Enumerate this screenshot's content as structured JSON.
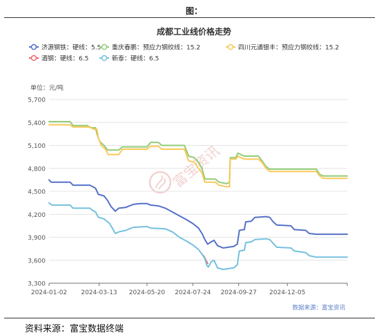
{
  "figure_label": "图：",
  "footer_source": "资料来源：富宝数据终端",
  "chart_data": {
    "type": "line",
    "title": "成都工业线价格走势",
    "unit_label": "单位：元/吨",
    "data_source": "数据来源：富宝资讯",
    "watermark": "富宝资讯",
    "xlabel": "",
    "ylabel": "",
    "ylim": [
      3300,
      5700
    ],
    "yticks": [
      3300,
      3600,
      3900,
      4200,
      4500,
      4800,
      5100,
      5400,
      5700
    ],
    "ytick_labels": [
      "3,300",
      "3,600",
      "3,900",
      "4,200",
      "4,500",
      "4,800",
      "5,100",
      "5,400",
      "5,700"
    ],
    "xlim": [
      "2024-01-02",
      "2025-02-28"
    ],
    "xticks": [
      "2024-01-02",
      "2024-03-13",
      "2024-05-20",
      "2024-07-24",
      "2024-09-27",
      "2024-12-05"
    ],
    "grid": "horizontal",
    "legend_position": "top-left",
    "series": [
      {
        "name": "济源钢铁：硬线：5.5",
        "color": "#5470c6",
        "points": [
          [
            "2024-01-02",
            4650
          ],
          [
            "2024-01-05",
            4620
          ],
          [
            "2024-02-01",
            4620
          ],
          [
            "2024-02-05",
            4580
          ],
          [
            "2024-02-29",
            4580
          ],
          [
            "2024-03-04",
            4560
          ],
          [
            "2024-03-08",
            4540
          ],
          [
            "2024-03-12",
            4460
          ],
          [
            "2024-03-20",
            4440
          ],
          [
            "2024-03-25",
            4380
          ],
          [
            "2024-03-30",
            4300
          ],
          [
            "2024-04-03",
            4260
          ],
          [
            "2024-04-05",
            4240
          ],
          [
            "2024-04-10",
            4280
          ],
          [
            "2024-04-20",
            4290
          ],
          [
            "2024-04-25",
            4310
          ],
          [
            "2024-05-01",
            4330
          ],
          [
            "2024-05-10",
            4340
          ],
          [
            "2024-05-20",
            4340
          ],
          [
            "2024-05-25",
            4320
          ],
          [
            "2024-06-05",
            4310
          ],
          [
            "2024-06-15",
            4280
          ],
          [
            "2024-06-25",
            4230
          ],
          [
            "2024-07-05",
            4180
          ],
          [
            "2024-07-15",
            4130
          ],
          [
            "2024-07-24",
            4080
          ],
          [
            "2024-08-01",
            4020
          ],
          [
            "2024-08-06",
            3950
          ],
          [
            "2024-08-10",
            3870
          ],
          [
            "2024-08-14",
            3810
          ],
          [
            "2024-08-19",
            3840
          ],
          [
            "2024-08-23",
            3860
          ],
          [
            "2024-08-28",
            3790
          ],
          [
            "2024-09-05",
            3760
          ],
          [
            "2024-09-20",
            3780
          ],
          [
            "2024-09-25",
            3810
          ],
          [
            "2024-09-28",
            3990
          ],
          [
            "2024-10-05",
            4000
          ],
          [
            "2024-10-07",
            4100
          ],
          [
            "2024-10-15",
            4110
          ],
          [
            "2024-10-20",
            4160
          ],
          [
            "2024-11-05",
            4170
          ],
          [
            "2024-11-10",
            4160
          ],
          [
            "2024-11-15",
            4100
          ],
          [
            "2024-11-20",
            4060
          ],
          [
            "2024-12-10",
            4050
          ],
          [
            "2024-12-15",
            4000
          ],
          [
            "2024-12-31",
            3990
          ],
          [
            "2025-01-05",
            3950
          ],
          [
            "2025-01-15",
            3940
          ],
          [
            "2025-02-28",
            3940
          ]
        ]
      },
      {
        "name": "重庆春鹏：预应力钢绞线：15.2",
        "color": "#91cc75",
        "points": [
          [
            "2024-01-02",
            5410
          ],
          [
            "2024-02-01",
            5410
          ],
          [
            "2024-02-05",
            5360
          ],
          [
            "2024-02-25",
            5360
          ],
          [
            "2024-03-01",
            5330
          ],
          [
            "2024-03-08",
            5330
          ],
          [
            "2024-03-10",
            5250
          ],
          [
            "2024-03-14",
            5150
          ],
          [
            "2024-03-20",
            5100
          ],
          [
            "2024-03-25",
            5040
          ],
          [
            "2024-04-10",
            5040
          ],
          [
            "2024-04-15",
            5080
          ],
          [
            "2024-05-05",
            5080
          ],
          [
            "2024-05-20",
            5080
          ],
          [
            "2024-05-25",
            5140
          ],
          [
            "2024-06-05",
            5140
          ],
          [
            "2024-06-10",
            5100
          ],
          [
            "2024-07-12",
            5100
          ],
          [
            "2024-07-18",
            4960
          ],
          [
            "2024-07-26",
            4940
          ],
          [
            "2024-08-01",
            4880
          ],
          [
            "2024-08-06",
            4800
          ],
          [
            "2024-08-10",
            4660
          ],
          [
            "2024-08-15",
            4660
          ],
          [
            "2024-08-25",
            4660
          ],
          [
            "2024-08-30",
            4620
          ],
          [
            "2024-09-10",
            4600
          ],
          [
            "2024-09-14",
            4620
          ],
          [
            "2024-09-15",
            4940
          ],
          [
            "2024-09-23",
            4940
          ],
          [
            "2024-09-26",
            5000
          ],
          [
            "2024-09-30",
            4980
          ],
          [
            "2024-10-05",
            4960
          ],
          [
            "2024-10-25",
            4960
          ],
          [
            "2024-10-30",
            4900
          ],
          [
            "2024-11-05",
            4820
          ],
          [
            "2024-11-10",
            4790
          ],
          [
            "2024-12-15",
            4790
          ],
          [
            "2025-01-15",
            4790
          ],
          [
            "2025-01-20",
            4720
          ],
          [
            "2025-01-25",
            4700
          ],
          [
            "2025-02-28",
            4700
          ]
        ]
      },
      {
        "name": "四川元通银丰：预应力钢绞线：15.2",
        "color": "#fac858",
        "points": [
          [
            "2024-01-02",
            5370
          ],
          [
            "2024-02-01",
            5370
          ],
          [
            "2024-02-05",
            5340
          ],
          [
            "2024-03-01",
            5340
          ],
          [
            "2024-03-05",
            5310
          ],
          [
            "2024-03-10",
            5310
          ],
          [
            "2024-03-12",
            5200
          ],
          [
            "2024-03-16",
            5100
          ],
          [
            "2024-03-22",
            5050
          ],
          [
            "2024-03-26",
            4980
          ],
          [
            "2024-04-10",
            4980
          ],
          [
            "2024-04-15",
            5050
          ],
          [
            "2024-05-20",
            5050
          ],
          [
            "2024-05-25",
            5090
          ],
          [
            "2024-06-05",
            5090
          ],
          [
            "2024-06-10",
            5050
          ],
          [
            "2024-07-12",
            5050
          ],
          [
            "2024-07-18",
            4900
          ],
          [
            "2024-07-26",
            4880
          ],
          [
            "2024-08-01",
            4800
          ],
          [
            "2024-08-06",
            4740
          ],
          [
            "2024-08-10",
            4620
          ],
          [
            "2024-08-25",
            4620
          ],
          [
            "2024-08-30",
            4580
          ],
          [
            "2024-09-10",
            4560
          ],
          [
            "2024-09-14",
            4560
          ],
          [
            "2024-09-15",
            4920
          ],
          [
            "2024-09-23",
            4920
          ],
          [
            "2024-09-26",
            4960
          ],
          [
            "2024-09-30",
            4940
          ],
          [
            "2024-10-05",
            4920
          ],
          [
            "2024-10-25",
            4920
          ],
          [
            "2024-10-30",
            4880
          ],
          [
            "2024-11-05",
            4800
          ],
          [
            "2024-11-10",
            4760
          ],
          [
            "2024-12-15",
            4760
          ],
          [
            "2025-01-15",
            4760
          ],
          [
            "2025-01-20",
            4700
          ],
          [
            "2025-01-25",
            4670
          ],
          [
            "2025-02-28",
            4670
          ]
        ]
      },
      {
        "name": "酒钢：硬线：6.5",
        "color": "#ee6666",
        "points": [
          [
            "2024-08-08",
            3660
          ],
          [
            "2024-08-10",
            3630
          ],
          [
            "2024-08-12",
            3590
          ],
          [
            "2024-08-14",
            3560
          ]
        ]
      },
      {
        "name": "新泰：硬线：6.5",
        "color": "#73c0de",
        "points": [
          [
            "2024-01-02",
            4350
          ],
          [
            "2024-01-06",
            4320
          ],
          [
            "2024-02-01",
            4320
          ],
          [
            "2024-02-05",
            4280
          ],
          [
            "2024-02-29",
            4280
          ],
          [
            "2024-03-04",
            4250
          ],
          [
            "2024-03-08",
            4230
          ],
          [
            "2024-03-12",
            4160
          ],
          [
            "2024-03-20",
            4140
          ],
          [
            "2024-03-28",
            4080
          ],
          [
            "2024-04-02",
            4000
          ],
          [
            "2024-04-05",
            3950
          ],
          [
            "2024-04-10",
            3970
          ],
          [
            "2024-04-20",
            3990
          ],
          [
            "2024-04-25",
            4010
          ],
          [
            "2024-05-01",
            4030
          ],
          [
            "2024-05-20",
            4040
          ],
          [
            "2024-05-25",
            4020
          ],
          [
            "2024-06-15",
            4010
          ],
          [
            "2024-06-25",
            3970
          ],
          [
            "2024-07-05",
            3900
          ],
          [
            "2024-07-15",
            3850
          ],
          [
            "2024-07-24",
            3800
          ],
          [
            "2024-08-01",
            3740
          ],
          [
            "2024-08-06",
            3680
          ],
          [
            "2024-08-10",
            3620
          ],
          [
            "2024-08-13",
            3530
          ],
          [
            "2024-08-15",
            3510
          ],
          [
            "2024-08-19",
            3580
          ],
          [
            "2024-08-23",
            3600
          ],
          [
            "2024-08-28",
            3500
          ],
          [
            "2024-09-05",
            3480
          ],
          [
            "2024-09-20",
            3500
          ],
          [
            "2024-09-25",
            3540
          ],
          [
            "2024-09-28",
            3720
          ],
          [
            "2024-10-05",
            3730
          ],
          [
            "2024-10-07",
            3830
          ],
          [
            "2024-10-15",
            3840
          ],
          [
            "2024-10-20",
            3870
          ],
          [
            "2024-11-05",
            3880
          ],
          [
            "2024-11-10",
            3870
          ],
          [
            "2024-11-15",
            3820
          ],
          [
            "2024-11-20",
            3770
          ],
          [
            "2024-12-10",
            3760
          ],
          [
            "2024-12-15",
            3720
          ],
          [
            "2024-12-31",
            3700
          ],
          [
            "2025-01-05",
            3660
          ],
          [
            "2025-01-15",
            3640
          ],
          [
            "2025-02-28",
            3640
          ]
        ]
      }
    ]
  }
}
